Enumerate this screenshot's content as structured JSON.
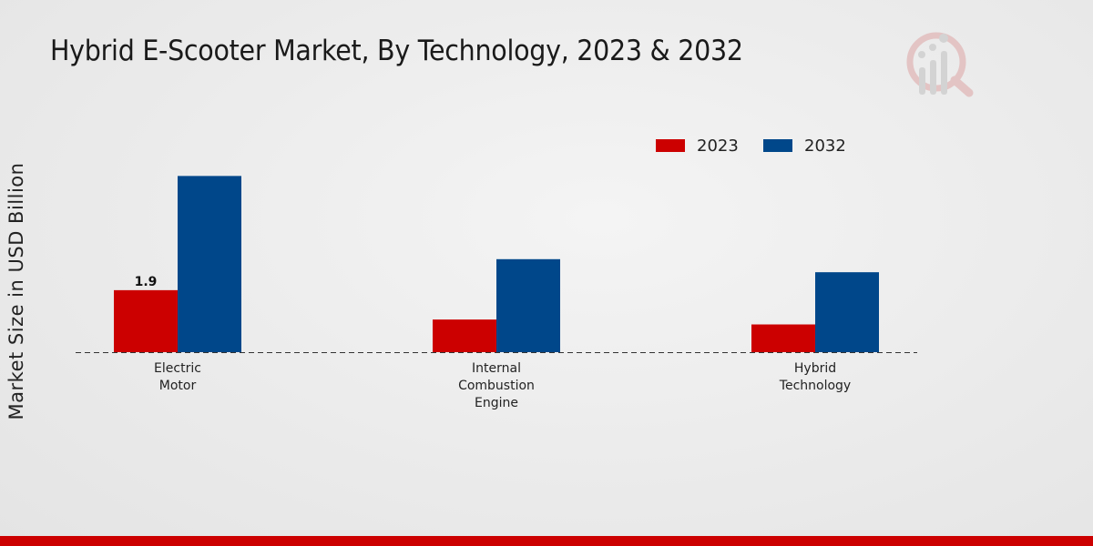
{
  "chart_data": {
    "type": "bar",
    "title": "Hybrid E-Scooter Market, By Technology, 2023 & 2032",
    "xlabel": "",
    "ylabel": "Market Size in USD Billion",
    "categories": [
      [
        "Electric",
        "Motor"
      ],
      [
        "Internal",
        "Combustion",
        "Engine"
      ],
      [
        "Hybrid",
        "Technology"
      ]
    ],
    "series": [
      {
        "name": "2023",
        "color": "#cc0000",
        "values": [
          1.9,
          1.0,
          0.85
        ]
      },
      {
        "name": "2032",
        "color": "#00478a",
        "values": [
          5.4,
          2.85,
          2.45
        ]
      }
    ],
    "data_labels": [
      {
        "series": 0,
        "category": 0,
        "text": "1.9"
      }
    ],
    "ylim": [
      0,
      7
    ],
    "grid": false,
    "legend": "top-right"
  }
}
